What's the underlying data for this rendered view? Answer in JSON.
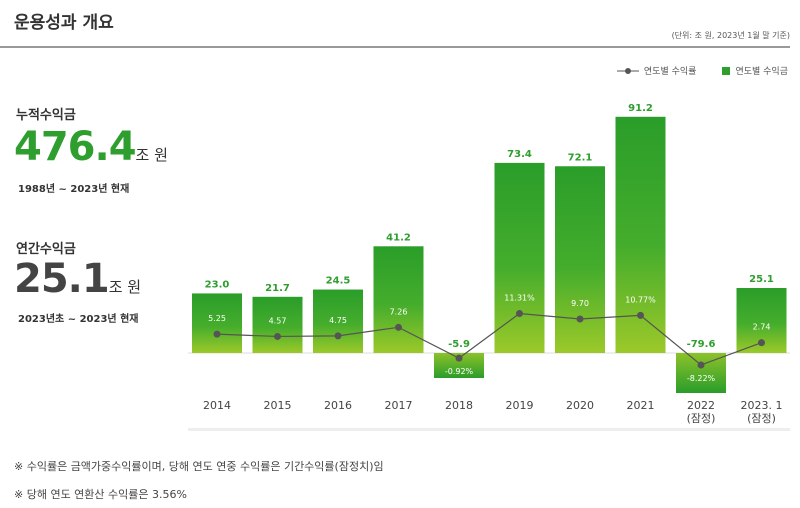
{
  "header": {
    "title": "운용성과 개요",
    "unit": "(단위: 조 원, 2023년 1월 말 기준)"
  },
  "summary": {
    "cumulative": {
      "label": "누적수익금",
      "value": "476.4",
      "unit": "조 원",
      "period": "1988년 ~ 2023년 현재",
      "color": "#2e9e2e"
    },
    "annual": {
      "label": "연간수익금",
      "value": "25.1",
      "unit": "조 원",
      "period": "2023년초 ~ 2023년 현재",
      "color": "#444444"
    }
  },
  "notes": [
    "※ 수익률은 금액가중수익률이며, 당해 연도 연중 수익률은 기간수익률(잠정치)임",
    "※ 당해 연도 연환산 수익률은 3.56%"
  ],
  "chart_data": {
    "type": "bar+line",
    "categories": [
      "2014",
      "2015",
      "2016",
      "2017",
      "2018",
      "2019",
      "2020",
      "2021",
      "2022\n(잠정)",
      "2023. 1\n(잠정)"
    ],
    "series": [
      {
        "name": "연도별 수익금",
        "type": "bar",
        "values": [
          23.0,
          21.7,
          24.5,
          41.2,
          -5.9,
          73.4,
          72.1,
          91.2,
          -79.6,
          25.1
        ],
        "labels": [
          "23.0",
          "21.7",
          "24.5",
          "41.2",
          "-5.9",
          "73.4",
          "72.1",
          "91.2",
          "-79.6",
          "25.1"
        ],
        "color": "#2e9e2e"
      },
      {
        "name": "연도별 수익률",
        "type": "line",
        "values": [
          5.25,
          4.57,
          4.75,
          7.26,
          -0.92,
          11.31,
          9.7,
          10.77,
          -8.22,
          2.74
        ],
        "labels": [
          "5.25",
          "4.57",
          "4.75",
          "7.26",
          "-0.92%",
          "11.31%",
          "9.70",
          "10.77%",
          "-8.22%",
          "2.74"
        ],
        "color": "#555555"
      }
    ],
    "legend": "top-right",
    "grid": false
  }
}
